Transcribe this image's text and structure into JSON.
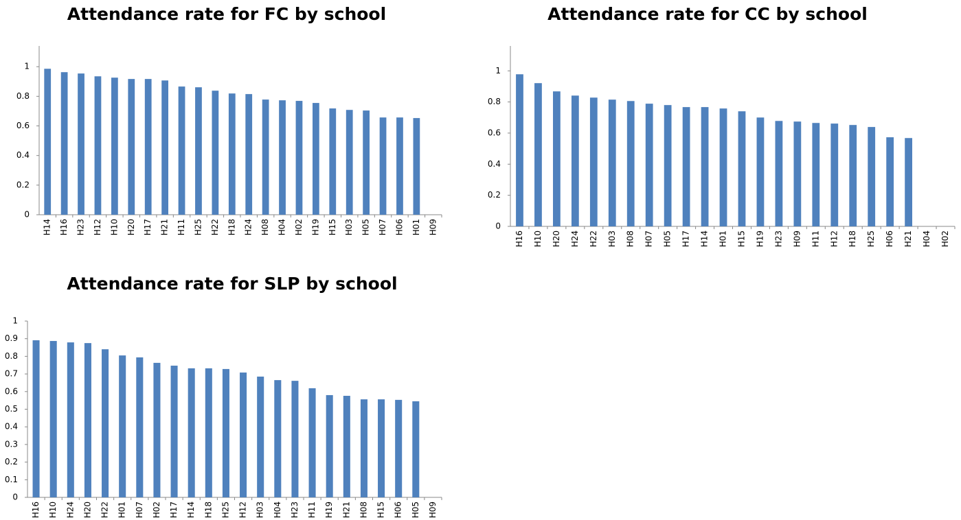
{
  "chart_data": [
    {
      "type": "bar",
      "title": "Attendance rate for FC by school",
      "categories": [
        "H14",
        "H16",
        "H23",
        "H12",
        "H10",
        "H20",
        "H17",
        "H21",
        "H11",
        "H25",
        "H22",
        "H18",
        "H24",
        "H08",
        "H04",
        "H02",
        "H19",
        "H15",
        "H03",
        "H05",
        "H07",
        "H06",
        "H01",
        "H09"
      ],
      "values": [
        0.986,
        0.963,
        0.954,
        0.935,
        0.926,
        0.917,
        0.917,
        0.907,
        0.866,
        0.861,
        0.838,
        0.819,
        0.815,
        0.778,
        0.773,
        0.769,
        0.755,
        0.718,
        0.708,
        0.704,
        0.657,
        0.657,
        0.653,
        null
      ],
      "color": "#4f81bd",
      "ylim": [
        0,
        1.14
      ],
      "yticks": [
        0,
        0.2,
        0.4,
        0.6,
        0.8,
        1
      ]
    },
    {
      "type": "bar",
      "title": "Attendance rate for CC by school",
      "categories": [
        "H16",
        "H10",
        "H20",
        "H24",
        "H22",
        "H03",
        "H08",
        "H07",
        "H05",
        "H17",
        "H14",
        "H01",
        "H15",
        "H19",
        "H23",
        "H09",
        "H11",
        "H12",
        "H18",
        "H25",
        "H06",
        "H21",
        "H04",
        "H02"
      ],
      "values": [
        0.978,
        0.921,
        0.868,
        0.841,
        0.828,
        0.815,
        0.806,
        0.789,
        0.78,
        0.767,
        0.767,
        0.758,
        0.74,
        0.7,
        0.678,
        0.674,
        0.665,
        0.661,
        0.652,
        0.639,
        0.573,
        0.568,
        null,
        null
      ],
      "color": "#4f81bd",
      "ylim": [
        0,
        1.16
      ],
      "yticks": [
        0,
        0.2,
        0.4,
        0.6,
        0.8,
        1
      ]
    },
    {
      "type": "bar",
      "title": "Attendance rate for SLP by school",
      "categories": [
        "H16",
        "H10",
        "H24",
        "H20",
        "H22",
        "H01",
        "H07",
        "H02",
        "H17",
        "H14",
        "H18",
        "H25",
        "H12",
        "H03",
        "H04",
        "H23",
        "H11",
        "H19",
        "H21",
        "H08",
        "H15",
        "H06",
        "H05",
        "H09"
      ],
      "values": [
        0.891,
        0.887,
        0.879,
        0.875,
        0.84,
        0.805,
        0.794,
        0.763,
        0.747,
        0.732,
        0.732,
        0.728,
        0.708,
        0.685,
        0.665,
        0.661,
        0.619,
        0.58,
        0.576,
        0.556,
        0.556,
        0.553,
        0.545,
        null
      ],
      "color": "#4f81bd",
      "ylim": [
        0,
        1
      ],
      "yticks": [
        0,
        0.1,
        0.2,
        0.3,
        0.4,
        0.5,
        0.6,
        0.7,
        0.8,
        0.9,
        1
      ]
    }
  ]
}
